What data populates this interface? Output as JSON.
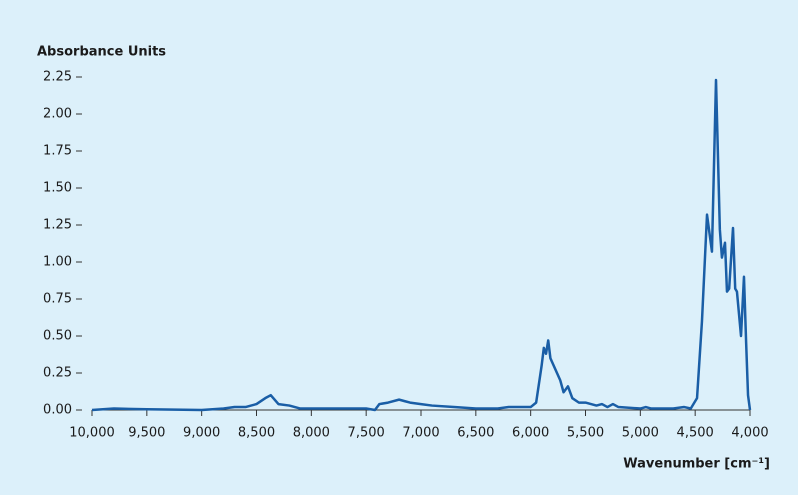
{
  "chart_data": {
    "type": "line",
    "y_label": "Absorbance Units",
    "x_label": "Wavenumber [cm⁻¹]",
    "xlim": [
      10000,
      4000
    ],
    "ylim": [
      0,
      2.25
    ],
    "xticks": [
      {
        "value": 10000,
        "label": "10,000"
      },
      {
        "value": 9500,
        "label": "9,500"
      },
      {
        "value": 9000,
        "label": "9,000"
      },
      {
        "value": 8500,
        "label": "8,500"
      },
      {
        "value": 8000,
        "label": "8,000"
      },
      {
        "value": 7500,
        "label": "7,500"
      },
      {
        "value": 7000,
        "label": "7,000"
      },
      {
        "value": 6500,
        "label": "6,500"
      },
      {
        "value": 6000,
        "label": "6,000"
      },
      {
        "value": 5500,
        "label": "5,500"
      },
      {
        "value": 5000,
        "label": "5,000"
      },
      {
        "value": 4500,
        "label": "4,500"
      },
      {
        "value": 4000,
        "label": "4,000"
      }
    ],
    "yticks": [
      {
        "value": 0,
        "label": "0.00"
      },
      {
        "value": 0.25,
        "label": "0.25"
      },
      {
        "value": 0.5,
        "label": "0.50"
      },
      {
        "value": 0.75,
        "label": "0.75"
      },
      {
        "value": 1,
        "label": "1.00"
      },
      {
        "value": 1.25,
        "label": "1.25"
      },
      {
        "value": 1.5,
        "label": "1.50"
      },
      {
        "value": 1.75,
        "label": "1.75"
      },
      {
        "value": 2,
        "label": "2.00"
      },
      {
        "value": 2.25,
        "label": "2.25"
      }
    ],
    "color": "#1a5ea6",
    "x": [
      10000,
      9800,
      9500,
      9000,
      8800,
      8700,
      8600,
      8500,
      8420,
      8370,
      8300,
      8200,
      8100,
      8000,
      7500,
      7420,
      7380,
      7300,
      7200,
      7150,
      7100,
      7000,
      6900,
      6700,
      6500,
      6300,
      6200,
      6100,
      6000,
      5950,
      5920,
      5900,
      5880,
      5860,
      5840,
      5820,
      5790,
      5760,
      5730,
      5700,
      5660,
      5620,
      5560,
      5500,
      5400,
      5350,
      5300,
      5250,
      5200,
      5000,
      4950,
      4900,
      4800,
      4700,
      4600,
      4540,
      4483,
      4438,
      4392,
      4347,
      4310,
      4275,
      4256,
      4228,
      4210,
      4190,
      4155,
      4135,
      4119,
      4082,
      4055,
      4035,
      4018,
      4000
    ],
    "values": [
      0.0,
      0.01,
      0.005,
      0.0,
      0.01,
      0.02,
      0.02,
      0.04,
      0.08,
      0.1,
      0.04,
      0.03,
      0.01,
      0.01,
      0.01,
      0.0,
      0.04,
      0.05,
      0.07,
      0.06,
      0.05,
      0.04,
      0.03,
      0.02,
      0.01,
      0.01,
      0.02,
      0.02,
      0.02,
      0.05,
      0.2,
      0.3,
      0.42,
      0.38,
      0.47,
      0.35,
      0.3,
      0.25,
      0.2,
      0.12,
      0.16,
      0.08,
      0.05,
      0.05,
      0.03,
      0.04,
      0.02,
      0.04,
      0.02,
      0.01,
      0.02,
      0.01,
      0.01,
      0.01,
      0.02,
      0.01,
      0.08,
      0.6,
      1.32,
      1.07,
      2.23,
      1.22,
      1.03,
      1.13,
      0.8,
      0.82,
      1.23,
      0.82,
      0.8,
      0.5,
      0.9,
      0.45,
      0.1,
      0.0
    ]
  }
}
